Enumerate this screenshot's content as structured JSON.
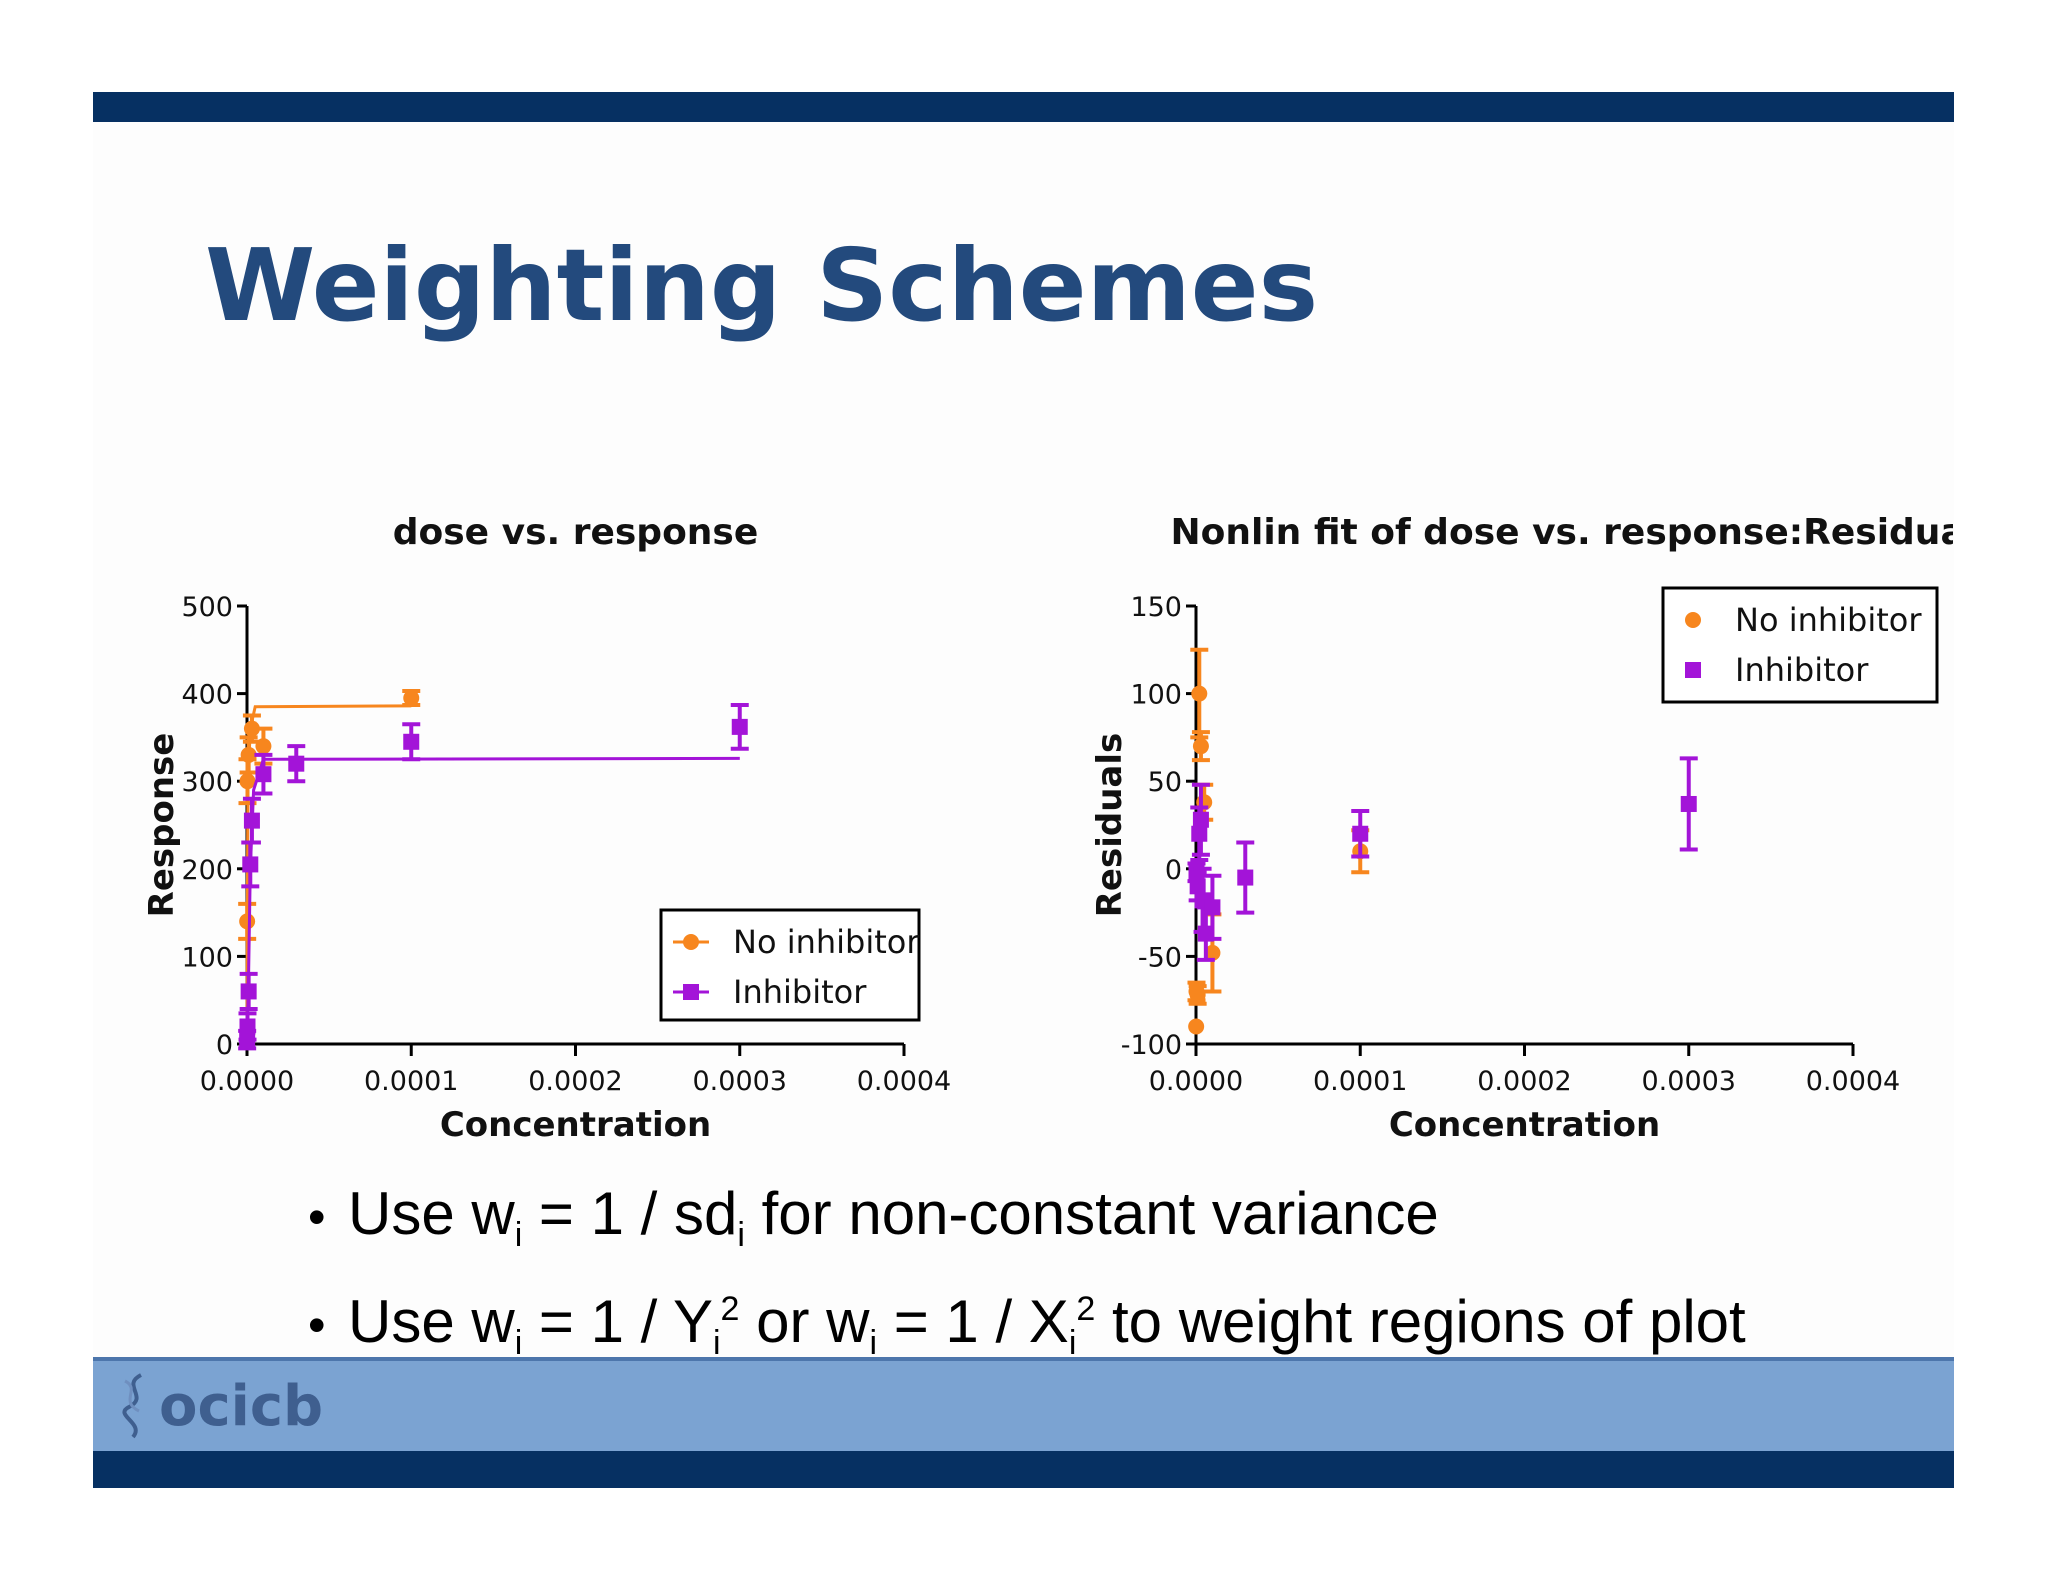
{
  "slide": {
    "title": "Weighting Schemes",
    "bullets": [
      {
        "pre": "Use w",
        "s1": "i",
        "mid": " = 1 / sd",
        "s2": "i",
        "post": " for non-constant variance"
      },
      {
        "pre": "Use w",
        "s1": "i",
        "a": " = 1 / Y",
        "s2": "i",
        "p1": "2",
        "b": " or w",
        "s3": "i",
        "c": " = 1 / X",
        "s4": "i",
        "p2": "2",
        "post": " to weight regions of plot"
      }
    ],
    "bullet_char": "•",
    "logo_text": "ocicb"
  },
  "colors": {
    "orange": "#f7861e",
    "purple": "#a314d8",
    "navy": "#063062",
    "title": "#234a7d"
  },
  "chart_data": [
    {
      "type": "scatter",
      "title": "dose vs. response",
      "xlabel": "Concentration",
      "ylabel": "Response",
      "xlim": [
        0,
        0.0004
      ],
      "ylim": [
        0,
        500
      ],
      "xticks": [
        0,
        0.0001,
        0.0002,
        0.0003,
        0.0004
      ],
      "xtick_labels": [
        "0.0000",
        "0.0001",
        "0.0002",
        "0.0003",
        "0.0004"
      ],
      "yticks": [
        0,
        100,
        200,
        300,
        400,
        500
      ],
      "ytick_labels": [
        "0",
        "100",
        "200",
        "300",
        "400",
        "500"
      ],
      "legend": {
        "position": "bottom-right",
        "entries": [
          "No inhibitor",
          "Inhibitor"
        ]
      },
      "series": [
        {
          "name": "No inhibitor",
          "color": "#f7861e",
          "marker": "circle",
          "points": [
            {
              "x": 1e-07,
              "y": 140,
              "err": 20
            },
            {
              "x": 3e-07,
              "y": 300,
              "err": 25
            },
            {
              "x": 1e-06,
              "y": 330,
              "err": 20
            },
            {
              "x": 3e-06,
              "y": 360,
              "err": 15
            },
            {
              "x": 1e-05,
              "y": 340,
              "err": 20
            },
            {
              "x": 0.0001,
              "y": 395,
              "err": 8
            }
          ],
          "fit": [
            [
              0,
              0
            ],
            [
              2e-07,
              150
            ],
            [
              6e-07,
              300
            ],
            [
              2e-06,
              360
            ],
            [
              5e-06,
              385
            ],
            [
              0.0001,
              386
            ]
          ]
        },
        {
          "name": "Inhibitor",
          "color": "#a314d8",
          "marker": "square",
          "points": [
            {
              "x": 1e-07,
              "y": 5,
              "err": 10
            },
            {
              "x": 3e-07,
              "y": 20,
              "err": 15
            },
            {
              "x": 1e-06,
              "y": 60,
              "err": 20
            },
            {
              "x": 2e-06,
              "y": 205,
              "err": 25
            },
            {
              "x": 3e-06,
              "y": 255,
              "err": 25
            },
            {
              "x": 1e-05,
              "y": 308,
              "err": 22
            },
            {
              "x": 3e-05,
              "y": 320,
              "err": 20
            },
            {
              "x": 0.0001,
              "y": 345,
              "err": 20
            },
            {
              "x": 0.0003,
              "y": 362,
              "err": 25
            }
          ],
          "fit": [
            [
              0,
              0
            ],
            [
              1e-06,
              80
            ],
            [
              2e-06,
              200
            ],
            [
              4e-06,
              290
            ],
            [
              1e-05,
              325
            ],
            [
              0.0003,
              326
            ]
          ]
        }
      ]
    },
    {
      "type": "scatter",
      "title": "Nonlin fit of dose vs. response:Residuals",
      "xlabel": "Concentration",
      "ylabel": "Residuals",
      "xlim": [
        0,
        0.0004
      ],
      "ylim": [
        -100,
        150
      ],
      "xticks": [
        0,
        0.0001,
        0.0002,
        0.0003,
        0.0004
      ],
      "xtick_labels": [
        "0.0000",
        "0.0001",
        "0.0002",
        "0.0003",
        "0.0004"
      ],
      "yticks": [
        -100,
        -50,
        0,
        50,
        100,
        150
      ],
      "ytick_labels": [
        "-100",
        "-50",
        "0",
        "50",
        "100",
        "150"
      ],
      "legend": {
        "position": "top-right",
        "entries": [
          "No inhibitor",
          "Inhibitor"
        ]
      },
      "series": [
        {
          "name": "No inhibitor",
          "color": "#f7861e",
          "marker": "circle",
          "points": [
            {
              "x": 1e-07,
              "y": -90,
              "err": 0
            },
            {
              "x": 3e-07,
              "y": -70,
              "err": 5
            },
            {
              "x": 1e-06,
              "y": -72,
              "err": 5
            },
            {
              "x": 2e-06,
              "y": 100,
              "err": 25
            },
            {
              "x": 3e-06,
              "y": 70,
              "err": 8
            },
            {
              "x": 5e-06,
              "y": 38,
              "err": 10
            },
            {
              "x": 1e-05,
              "y": -48,
              "err": 22
            },
            {
              "x": 0.0001,
              "y": 10,
              "err": 12
            }
          ]
        },
        {
          "name": "Inhibitor",
          "color": "#a314d8",
          "marker": "square",
          "points": [
            {
              "x": 3e-07,
              "y": -2,
              "err": 5
            },
            {
              "x": 1e-06,
              "y": -10,
              "err": 8
            },
            {
              "x": 2e-06,
              "y": 20,
              "err": 15
            },
            {
              "x": 3e-06,
              "y": 28,
              "err": 20
            },
            {
              "x": 4e-06,
              "y": -18,
              "err": 18
            },
            {
              "x": 6e-06,
              "y": -37,
              "err": 15
            },
            {
              "x": 1e-05,
              "y": -22,
              "err": 18
            },
            {
              "x": 3e-05,
              "y": -5,
              "err": 20
            },
            {
              "x": 0.0001,
              "y": 20,
              "err": 13
            },
            {
              "x": 0.0003,
              "y": 37,
              "err": 26
            }
          ]
        }
      ]
    }
  ]
}
